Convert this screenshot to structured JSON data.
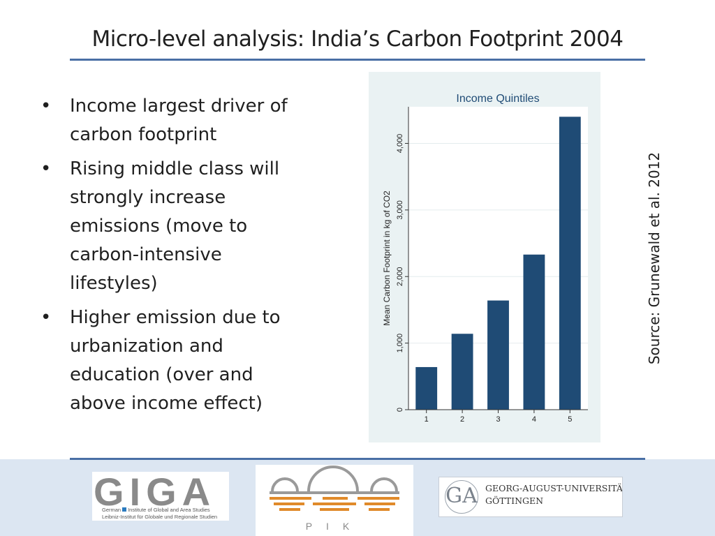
{
  "slide": {
    "title": "Micro-level analysis: India’s Carbon Footprint 2004",
    "bullets": [
      "Income largest driver of carbon footprint",
      "Rising middle class will strongly increase emissions (move to carbon-intensive lifestyles)",
      "Higher emission due to urbanization and education (over and above income effect)"
    ],
    "bullet_glyph": "•",
    "source": "Source: Grunewald et al. 2012"
  },
  "chart_data": {
    "type": "bar",
    "title": "Income Quintiles",
    "xlabel": "",
    "ylabel": "Mean Carbon Footprint in kg of CO2",
    "categories": [
      "1",
      "2",
      "3",
      "4",
      "5"
    ],
    "values": [
      640,
      1140,
      1640,
      2330,
      4400
    ],
    "ylim": [
      0,
      4550
    ],
    "yticks": [
      0,
      1000,
      2000,
      3000,
      4000
    ],
    "ytick_labels": [
      "0",
      "1,000",
      "2,000",
      "3,000",
      "4,000"
    ],
    "grid": true,
    "colors": {
      "bar": "#1f4b75",
      "background": "#eaf2f3",
      "plot": "#ffffff",
      "title": "#1f4b75"
    }
  },
  "footer": {
    "giga": {
      "letters": "GIGA",
      "line1_pre": "German",
      "line1_post": "Institute of Global and Area Studies",
      "line2": "Leibniz-Institut für Globale und Regionale Studien"
    },
    "pik": {
      "text": "PIK"
    },
    "goettingen": {
      "seal": "GA",
      "line1": "GEORG-AUGUST-UNIVERSITÄT",
      "line2": "GÖTTINGEN"
    }
  }
}
